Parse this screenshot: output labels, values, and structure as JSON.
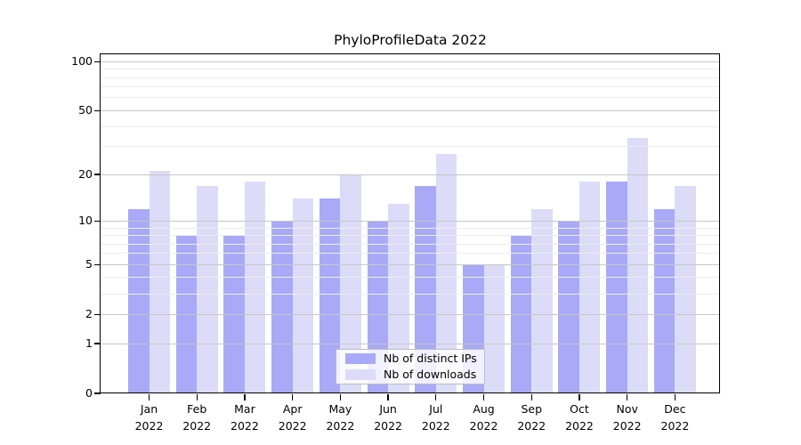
{
  "title": "PhyloProfileData 2022",
  "legend": {
    "items": [
      {
        "label": "Nb of distinct IPs",
        "series": "distinct_ips"
      },
      {
        "label": "Nb of downloads",
        "series": "downloads"
      }
    ]
  },
  "colors": {
    "distinct_ips": "#a9a9f7",
    "downloads": "#dcdcf9",
    "major_gridline": "#c6c6c6",
    "minor_gridline": "#ececec",
    "axis": "#000000"
  },
  "chart_data": {
    "type": "bar",
    "title": "PhyloProfileData 2022",
    "months": [
      "Jan",
      "Feb",
      "Mar",
      "Apr",
      "May",
      "Jun",
      "Jul",
      "Aug",
      "Sep",
      "Oct",
      "Nov",
      "Dec"
    ],
    "year": "2022",
    "categories": [
      "Jan 2022",
      "Feb 2022",
      "Mar 2022",
      "Apr 2022",
      "May 2022",
      "Jun 2022",
      "Jul 2022",
      "Aug 2022",
      "Sep 2022",
      "Oct 2022",
      "Nov 2022",
      "Dec 2022"
    ],
    "series": [
      {
        "name": "Nb of distinct IPs",
        "values": [
          12,
          8,
          8,
          10,
          14,
          10,
          17,
          5,
          8,
          10,
          18,
          12
        ]
      },
      {
        "name": "Nb of downloads",
        "values": [
          21,
          17,
          18,
          14,
          20,
          13,
          27,
          5,
          12,
          18,
          34,
          17
        ]
      }
    ],
    "y_axis": {
      "scale": "log10(value+1)",
      "ticks": [
        100,
        50,
        20,
        10,
        5,
        2,
        1,
        0
      ],
      "major_gridlines": [
        1,
        2,
        5,
        10,
        20,
        50,
        100
      ],
      "minor_gridlines": [
        3,
        4,
        6,
        7,
        8,
        9,
        30,
        40,
        60,
        70,
        80,
        90
      ]
    },
    "grid": true,
    "legend_position": "inside-bottom-center"
  }
}
